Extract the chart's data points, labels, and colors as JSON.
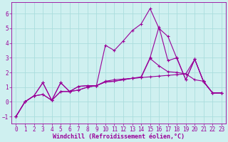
{
  "xlabel": "Windchill (Refroidissement éolien,°C)",
  "background_color": "#cff0f0",
  "grid_color": "#aadddd",
  "line_color": "#990099",
  "xlim": [
    -0.5,
    23.5
  ],
  "ylim": [
    -1.5,
    6.8
  ],
  "xticks": [
    0,
    1,
    2,
    3,
    4,
    5,
    6,
    7,
    8,
    9,
    10,
    11,
    12,
    13,
    14,
    15,
    16,
    17,
    18,
    19,
    20,
    21,
    22,
    23
  ],
  "yticks": [
    -1,
    0,
    1,
    2,
    3,
    4,
    5,
    6
  ],
  "series1_x": [
    0,
    1,
    2,
    3,
    4,
    5,
    6,
    7,
    8,
    9,
    10,
    11,
    12,
    13,
    14,
    15,
    16,
    17,
    18,
    19,
    20,
    21,
    22,
    23
  ],
  "series1_y": [
    -1.0,
    0.0,
    0.4,
    0.5,
    0.1,
    0.7,
    0.7,
    0.8,
    1.0,
    1.1,
    1.35,
    1.4,
    1.5,
    1.6,
    1.65,
    1.7,
    1.75,
    1.8,
    1.85,
    1.9,
    1.5,
    1.4,
    0.6,
    0.6
  ],
  "series2_x": [
    0,
    1,
    2,
    3,
    4,
    5,
    6,
    7,
    8,
    9,
    10,
    11,
    12,
    13,
    14,
    15,
    16,
    17,
    18,
    19,
    20,
    21,
    22,
    23
  ],
  "series2_y": [
    -1.0,
    0.0,
    0.4,
    1.3,
    0.1,
    1.3,
    0.7,
    1.05,
    1.1,
    1.1,
    1.4,
    1.5,
    1.55,
    1.6,
    1.7,
    3.0,
    5.1,
    2.8,
    3.0,
    1.5,
    2.9,
    1.35,
    0.6,
    0.6
  ],
  "series3_x": [
    0,
    1,
    2,
    3,
    4,
    5,
    6,
    7,
    8,
    9,
    10,
    11,
    12,
    13,
    14,
    15,
    16,
    17,
    18,
    19,
    20,
    21,
    22,
    23
  ],
  "series3_y": [
    -1.0,
    0.0,
    0.4,
    1.3,
    0.1,
    1.3,
    0.7,
    1.05,
    1.1,
    1.1,
    3.85,
    3.5,
    4.15,
    4.85,
    5.3,
    6.35,
    5.0,
    4.45,
    2.95,
    1.5,
    2.9,
    1.35,
    0.6,
    0.6
  ],
  "series4_x": [
    0,
    1,
    2,
    3,
    4,
    5,
    6,
    7,
    8,
    9,
    10,
    11,
    12,
    13,
    14,
    15,
    16,
    17,
    18,
    19,
    20,
    21,
    22,
    23
  ],
  "series4_y": [
    -1.0,
    0.0,
    0.4,
    0.5,
    0.1,
    0.7,
    0.7,
    0.8,
    1.0,
    1.1,
    1.35,
    1.4,
    1.5,
    1.6,
    1.65,
    2.95,
    2.45,
    2.05,
    2.0,
    1.9,
    2.9,
    1.35,
    0.6,
    0.6
  ],
  "tick_fontsize": 5.5,
  "xlabel_fontsize": 6.0,
  "xlabel_bold": true
}
